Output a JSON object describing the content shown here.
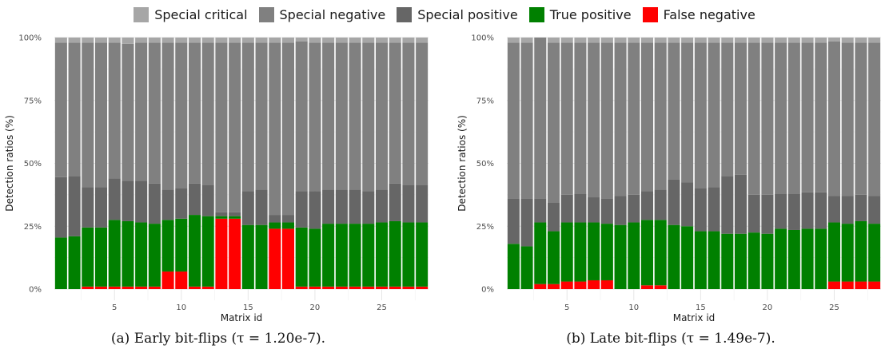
{
  "legend": [
    {
      "label": "Special critical",
      "color": "#a6a6a6"
    },
    {
      "label": "Special negative",
      "color": "#808080"
    },
    {
      "label": "Special positive",
      "color": "#666666"
    },
    {
      "label": "True positive",
      "color": "#008000"
    },
    {
      "label": "False negative",
      "color": "#ff0000"
    }
  ],
  "captions": {
    "a": "(a) Early bit-flips (τ = 1.20e-7).",
    "b": "(b) Late bit-flips (τ = 1.49e-7)."
  },
  "chart_data": [
    {
      "type": "bar",
      "stacked": true,
      "xlabel": "Matrix id",
      "ylabel": "Detection ratios (%)",
      "ylim": [
        0,
        100
      ],
      "yticks": [
        0,
        25,
        50,
        75,
        100
      ],
      "ytick_labels": [
        "0%",
        "25%",
        "50%",
        "75%",
        "100%"
      ],
      "xticks": [
        5,
        10,
        15,
        20,
        25
      ],
      "grid": true,
      "x": [
        1,
        2,
        3,
        4,
        5,
        6,
        7,
        8,
        9,
        10,
        11,
        12,
        13,
        14,
        15,
        16,
        17,
        18,
        19,
        20,
        21,
        22,
        23,
        24,
        25,
        26,
        27,
        28
      ],
      "series": [
        {
          "name": "False negative",
          "color": "#ff0000",
          "values": [
            0,
            0,
            1,
            1,
            1,
            1,
            1,
            1,
            7,
            7,
            1,
            1,
            28,
            28,
            0,
            0,
            24,
            24,
            1,
            1,
            1,
            1,
            1,
            1,
            1,
            1,
            1,
            1
          ]
        },
        {
          "name": "True positive",
          "color": "#008000",
          "values": [
            20.5,
            21,
            23.5,
            23.5,
            26.5,
            26,
            25.5,
            25,
            20.5,
            21,
            28.5,
            28,
            1,
            1,
            25.5,
            25.5,
            2.5,
            2.5,
            23.5,
            23,
            25,
            25,
            25,
            25,
            25.5,
            26,
            25.5,
            25.5
          ]
        },
        {
          "name": "Special positive",
          "color": "#666666",
          "values": [
            24,
            24,
            16,
            16,
            16.5,
            16,
            16.5,
            16,
            12,
            12,
            12.5,
            12.5,
            1.5,
            1.5,
            13.5,
            14,
            3,
            3,
            14.5,
            15,
            13.5,
            13.5,
            13.5,
            13,
            13,
            15,
            15,
            15
          ]
        },
        {
          "name": "Special negative",
          "color": "#808080",
          "values": [
            53.5,
            53,
            57.5,
            57.5,
            54,
            54.5,
            55,
            56,
            58.5,
            58,
            56,
            56.5,
            67.5,
            67.5,
            59,
            58.5,
            68.5,
            68.5,
            59.5,
            59,
            58.5,
            58.5,
            58.5,
            59,
            58.5,
            56,
            56.5,
            56.5
          ]
        },
        {
          "name": "Special critical",
          "color": "#a6a6a6",
          "values": [
            2,
            2,
            2,
            2,
            2,
            2.5,
            2,
            2,
            2,
            2,
            2,
            2,
            2,
            2,
            2,
            2,
            2,
            2,
            1.5,
            2,
            2,
            2,
            2,
            2,
            2,
            2,
            2,
            2
          ]
        }
      ]
    },
    {
      "type": "bar",
      "stacked": true,
      "xlabel": "Matrix id",
      "ylabel": "Detection ratios (%)",
      "ylim": [
        0,
        100
      ],
      "yticks": [
        0,
        25,
        50,
        75,
        100
      ],
      "ytick_labels": [
        "0%",
        "25%",
        "50%",
        "75%",
        "100%"
      ],
      "xticks": [
        5,
        10,
        15,
        20,
        25
      ],
      "grid": true,
      "x": [
        1,
        2,
        3,
        4,
        5,
        6,
        7,
        8,
        9,
        10,
        11,
        12,
        13,
        14,
        15,
        16,
        17,
        18,
        19,
        20,
        21,
        22,
        23,
        24,
        25,
        26,
        27,
        28
      ],
      "series": [
        {
          "name": "False negative",
          "color": "#ff0000",
          "values": [
            0,
            0,
            2,
            2,
            3,
            3,
            3.5,
            3.5,
            0,
            0,
            1.5,
            1.5,
            0,
            0,
            0,
            0,
            0,
            0,
            0,
            0,
            0,
            0,
            0,
            0,
            3,
            3,
            3,
            3
          ]
        },
        {
          "name": "True positive",
          "color": "#008000",
          "values": [
            18,
            17,
            24.5,
            21,
            23.5,
            23.5,
            23,
            22.5,
            25.5,
            26.5,
            26,
            26,
            25.5,
            25,
            23,
            23,
            22,
            22,
            22.5,
            22,
            24,
            23.5,
            24,
            24,
            23.5,
            23,
            24,
            23
          ]
        },
        {
          "name": "Special positive",
          "color": "#666666",
          "values": [
            18,
            19,
            9.5,
            11.5,
            11,
            11.5,
            10,
            10,
            11.5,
            11,
            11.5,
            12,
            18,
            17.5,
            17,
            17.5,
            23,
            23.5,
            15,
            15.5,
            14,
            14.5,
            14.5,
            14.5,
            10.5,
            11,
            10.5,
            11
          ]
        },
        {
          "name": "Special negative",
          "color": "#808080",
          "values": [
            62,
            62,
            64,
            63.5,
            60.5,
            60,
            61.5,
            62,
            61,
            60.5,
            59,
            58.5,
            54.5,
            55.5,
            58,
            57.5,
            53,
            52.5,
            60.5,
            60.5,
            60,
            60,
            59.5,
            59.5,
            61.5,
            61,
            60.5,
            61
          ]
        },
        {
          "name": "Special critical",
          "color": "#a6a6a6",
          "values": [
            2,
            2,
            0,
            2,
            2,
            2,
            2,
            2,
            2,
            2,
            2,
            2,
            2,
            2,
            2,
            2,
            2,
            2,
            2,
            2,
            2,
            2,
            2,
            2,
            1.5,
            2,
            2,
            2
          ]
        }
      ]
    }
  ]
}
